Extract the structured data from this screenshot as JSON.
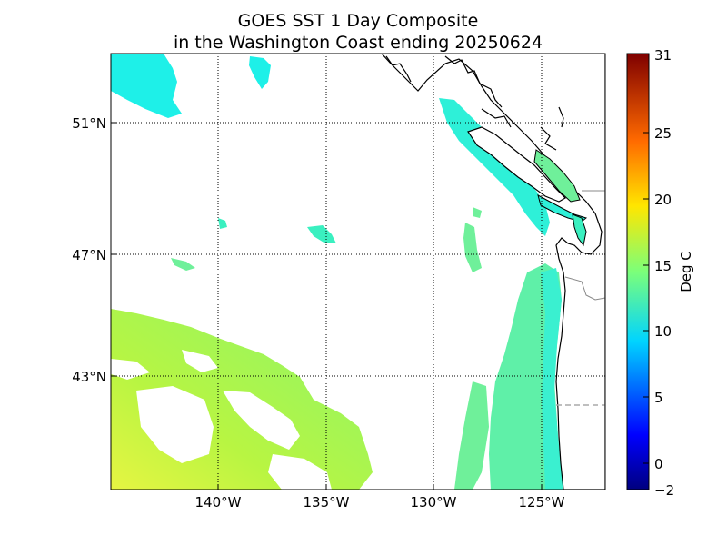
{
  "title": {
    "line1": "GOES SST 1 Day Composite",
    "line2": "in the Washington Coast ending 20250624"
  },
  "map": {
    "lat_labels": [
      "51°N",
      "47°N",
      "43°N"
    ],
    "lon_labels": [
      "140°W",
      "135°W",
      "130°W",
      "125°W"
    ],
    "extent": {
      "lon_min": -145,
      "lon_max": -122,
      "lat_min": 39.2,
      "lat_max": 53.3
    }
  },
  "colorbar": {
    "label": "Deg C",
    "ticks": [
      "31",
      "25",
      "20",
      "15",
      "10",
      "5",
      "0",
      "−2"
    ],
    "range": [
      -2,
      31
    ],
    "colormap": "jet"
  },
  "colors": {
    "coastline": "#000000",
    "border": "#888888",
    "grid": "#000000",
    "warm_offshore": "#b8f542",
    "mid": "#7cf57c",
    "cool_coastal": "#3df5c4",
    "cold_north": "#1ef5e6"
  }
}
